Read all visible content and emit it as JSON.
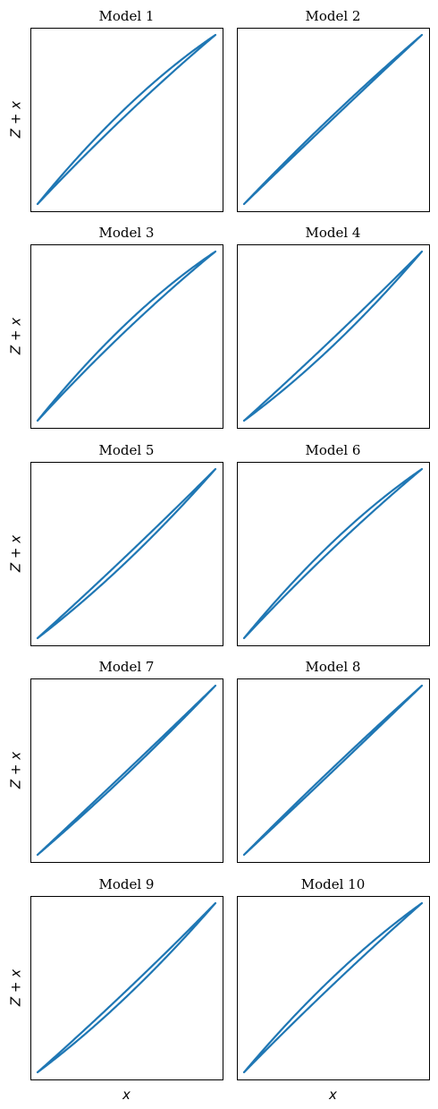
{
  "chart_data": {
    "type": "line",
    "color": "#1f77b4",
    "grid": false,
    "xticks": false,
    "yticks": false,
    "xlim": [
      0,
      1
    ],
    "ylim": [
      0,
      1
    ],
    "xlabel": "x",
    "ylabel": "Z + x",
    "panels": [
      {
        "title": "Model 1",
        "bow": 0.05,
        "width": 0.022
      },
      {
        "title": "Model 2",
        "bow": 0.015,
        "width": 0.01
      },
      {
        "title": "Model 3",
        "bow": 0.055,
        "width": 0.02
      },
      {
        "title": "Model 4",
        "bow": -0.035,
        "width": 0.022
      },
      {
        "title": "Model 5",
        "bow": -0.03,
        "width": 0.018
      },
      {
        "title": "Model 6",
        "bow": 0.05,
        "width": 0.02
      },
      {
        "title": "Model 7",
        "bow": -0.015,
        "width": 0.01
      },
      {
        "title": "Model 8",
        "bow": 0.005,
        "width": 0.01
      },
      {
        "title": "Model 9",
        "bow": -0.035,
        "width": 0.018
      },
      {
        "title": "Model 10",
        "bow": 0.04,
        "width": 0.022
      }
    ]
  }
}
